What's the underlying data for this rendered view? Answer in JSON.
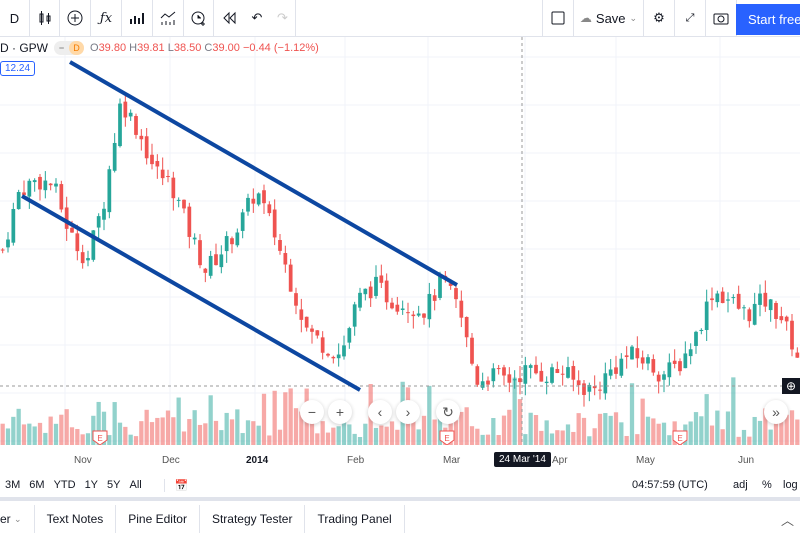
{
  "toolbar": {
    "interval": "D",
    "save_label": "Save",
    "start_label": "Start free"
  },
  "legend": {
    "symbol": "D · GPW",
    "pill_left": "−",
    "pill_right": "D",
    "open_k": "O",
    "open": "39.80",
    "high_k": "H",
    "high": "39.81",
    "low_k": "L",
    "low": "38.50",
    "close_k": "C",
    "close": "39.00",
    "change": "−0.44 (−1.12%)",
    "price_tag": "12.24"
  },
  "chart": {
    "up_color": "#26a69a",
    "down_color": "#ef5350",
    "trendline_color": "#0d47a1",
    "key_closes": [
      43.2,
      45.6,
      46.0,
      45.8,
      43.8,
      42.8,
      45.2,
      49.2,
      48.0,
      46.4,
      45.8,
      44.0,
      42.4,
      43.2,
      44.2,
      45.6,
      44.0,
      42.0,
      40.0,
      39.4,
      39.0,
      41.2,
      41.8,
      41.2,
      41.0,
      40.8,
      42.0,
      40.8,
      38.0,
      38.2,
      38.0,
      38.4,
      38.2,
      38.4,
      37.8,
      37.6,
      38.4,
      39.0,
      38.8,
      38.2,
      38.6,
      39.8,
      41.6,
      41.2,
      40.6,
      41.2,
      40.6,
      39.0
    ]
  },
  "x_axis": {
    "labels": [
      "Nov",
      "Dec",
      "2014",
      "Feb",
      "Mar",
      "Apr",
      "May",
      "Jun"
    ],
    "crosshair_label": "24 Mar '14"
  },
  "bottom_bar": {
    "ranges": [
      "3M",
      "6M",
      "YTD",
      "1Y",
      "5Y",
      "All"
    ],
    "time": "04:57:59 (UTC)",
    "adj": "adj",
    "pct": "%",
    "log": "log"
  },
  "tabs": [
    "er",
    "Text Notes",
    "Pine Editor",
    "Strategy Tester",
    "Trading Panel"
  ]
}
